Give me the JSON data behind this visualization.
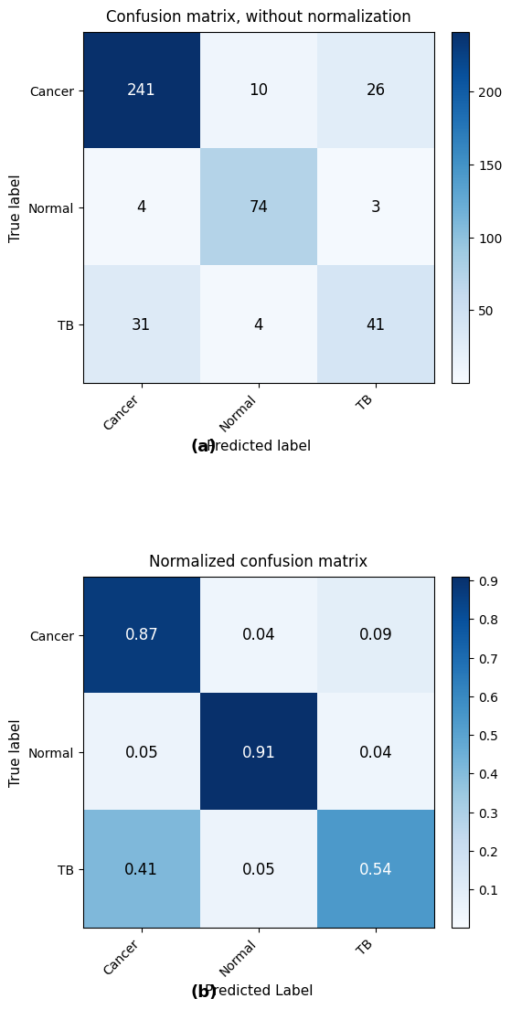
{
  "matrix_a": [
    [
      241,
      10,
      26
    ],
    [
      4,
      74,
      3
    ],
    [
      31,
      4,
      41
    ]
  ],
  "matrix_b": [
    [
      0.87,
      0.04,
      0.09
    ],
    [
      0.05,
      0.91,
      0.04
    ],
    [
      0.41,
      0.05,
      0.54
    ]
  ],
  "classes": [
    "Cancer",
    "Normal",
    "TB"
  ],
  "title_a": "Confusion matrix, without normalization",
  "title_b": "Normalized confusion matrix",
  "xlabel_a": "Predicted label",
  "ylabel_a": "True label",
  "xlabel_b": "Predicted Label",
  "ylabel_b": "True label",
  "label_a": "(a)",
  "label_b": "(b)",
  "cmap": "Blues",
  "vmin_a": 0,
  "vmax_a": 241,
  "vmin_b": 0.0,
  "vmax_b": 0.91,
  "colorbar_ticks_a": [
    50,
    100,
    150,
    200
  ],
  "colorbar_ticks_b": [
    0.1,
    0.2,
    0.3,
    0.4,
    0.5,
    0.6,
    0.7,
    0.8,
    0.9
  ],
  "title_fontsize": 12,
  "label_fontsize": 11,
  "tick_fontsize": 10,
  "cell_fontsize": 12,
  "caption_fontsize": 13
}
